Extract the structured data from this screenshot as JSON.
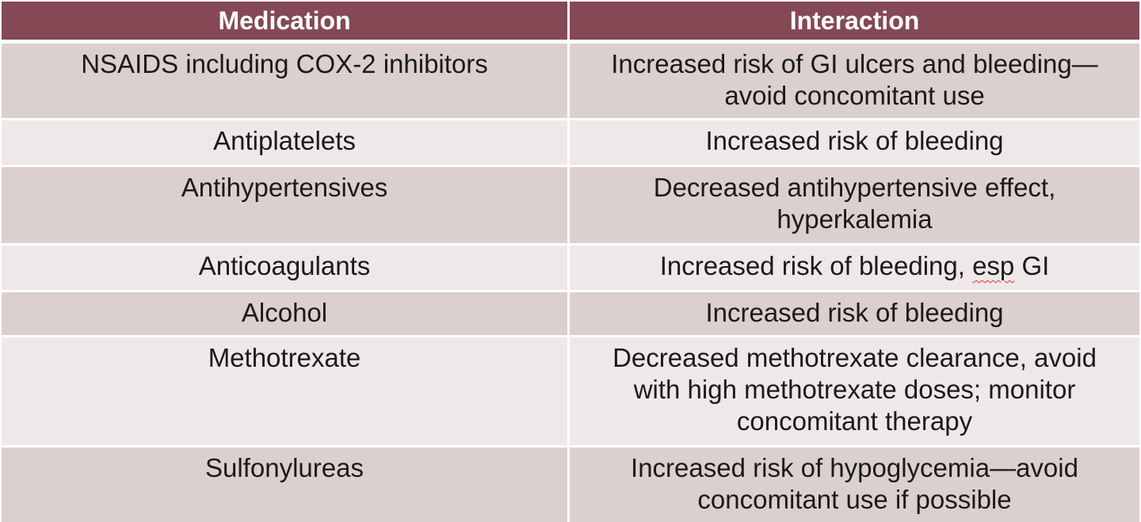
{
  "table": {
    "headers": {
      "medication": "Medication",
      "interaction": "Interaction"
    },
    "rows": [
      {
        "medication": "NSAIDS including COX-2 inhibitors",
        "interaction_lines": [
          "Increased risk of GI ulcers and bleeding—",
          "avoid concomitant use"
        ]
      },
      {
        "medication": "Antiplatelets",
        "interaction_lines": [
          "Increased risk of bleeding"
        ]
      },
      {
        "medication": "Antihypertensives",
        "interaction_lines": [
          "Decreased antihypertensive effect,",
          "hyperkalemia"
        ]
      },
      {
        "medication": "Anticoagulants",
        "interaction_prefix": "Increased risk of bleeding, ",
        "interaction_flagged": "esp",
        "interaction_suffix": " GI"
      },
      {
        "medication": "Alcohol",
        "interaction_lines": [
          "Increased risk of bleeding"
        ]
      },
      {
        "medication": "Methotrexate",
        "interaction_lines": [
          "Decreased methotrexate clearance, avoid",
          "with high methotrexate doses; monitor",
          "concomitant therapy"
        ]
      },
      {
        "medication": "Sulfonylureas",
        "interaction_lines": [
          "Increased risk of hypoglycemia—avoid",
          "concomitant use if possible"
        ]
      }
    ]
  },
  "colors": {
    "header_bg": "#844955",
    "row_dark": "#dccfcf",
    "row_light": "#efe8e8"
  }
}
